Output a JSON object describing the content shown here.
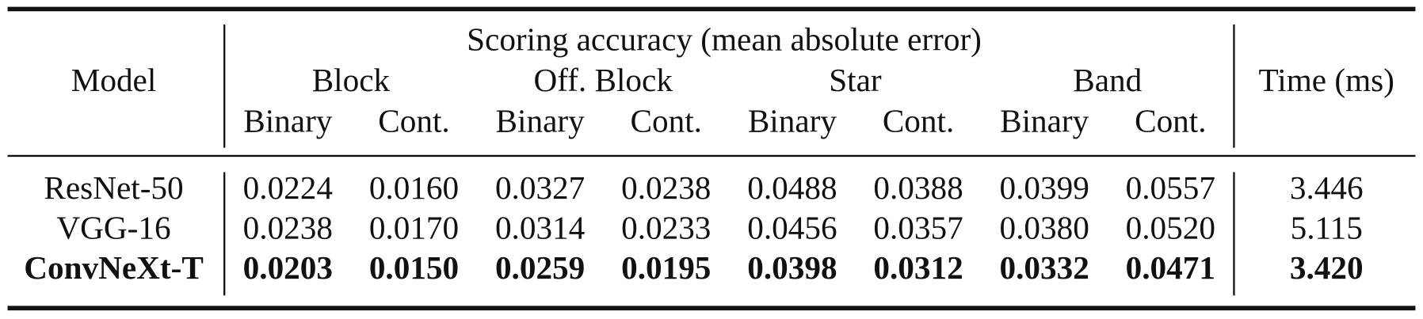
{
  "header": {
    "title": "Scoring accuracy (mean absolute error)",
    "model": "Model",
    "time": "Time (ms)",
    "groups": [
      "Block",
      "Off. Block",
      "Star",
      "Band"
    ],
    "subheaders": [
      "Binary",
      "Cont.",
      "Binary",
      "Cont.",
      "Binary",
      "Cont.",
      "Binary",
      "Cont."
    ]
  },
  "table": {
    "rows": [
      {
        "model": "ResNet-50",
        "values": [
          "0.0224",
          "0.0160",
          "0.0327",
          "0.0238",
          "0.0488",
          "0.0388",
          "0.0399",
          "0.0557"
        ],
        "time": "3.446",
        "bold": false
      },
      {
        "model": "VGG-16",
        "values": [
          "0.0238",
          "0.0170",
          "0.0314",
          "0.0233",
          "0.0456",
          "0.0357",
          "0.0380",
          "0.0520"
        ],
        "time": "5.115",
        "bold": false
      },
      {
        "model": "ConvNeXt-T",
        "values": [
          "0.0203",
          "0.0150",
          "0.0259",
          "0.0195",
          "0.0398",
          "0.0312",
          "0.0332",
          "0.0471"
        ],
        "time": "3.420",
        "bold": true
      }
    ]
  }
}
